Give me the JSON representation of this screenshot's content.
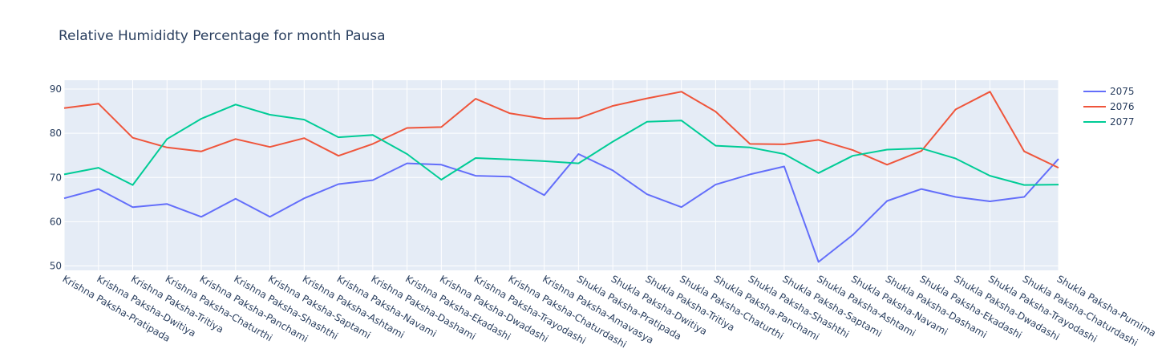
{
  "chart_data": {
    "type": "line",
    "title": "Relative Humididty Percentage for month Pausa",
    "xlabel": "",
    "ylabel": "",
    "ylim": [
      49,
      92
    ],
    "yticks": [
      50,
      60,
      70,
      80,
      90
    ],
    "grid": true,
    "legend_position": "top-right",
    "categories": [
      "Krishna Paksha-Pratipada",
      "Krishna Paksha-Dwitiya",
      "Krishna Paksha-Tritiya",
      "Krishna Paksha-Chaturthi",
      "Krishna Paksha-Panchami",
      "Krishna Paksha-Shashthi",
      "Krishna Paksha-Saptami",
      "Krishna Paksha-Ashtami",
      "Krishna Paksha-Navami",
      "Krishna Paksha-Dashami",
      "Krishna Paksha-Ekadashi",
      "Krishna Paksha-Dwadashi",
      "Krishna Paksha-Trayodashi",
      "Krishna Paksha-Chaturdashi",
      "Krishna Paksha-Amavasya",
      "Shukla Paksha-Pratipada",
      "Shukla Paksha-Dwitiya",
      "Shukla Paksha-Tritiya",
      "Shukla Paksha-Chaturthi",
      "Shukla Paksha-Panchami",
      "Shukla Paksha-Shashthi",
      "Shukla Paksha-Saptami",
      "Shukla Paksha-Ashtami",
      "Shukla Paksha-Navami",
      "Shukla Paksha-Dashami",
      "Shukla Paksha-Ekadashi",
      "Shukla Paksha-Dwadashi",
      "Shukla Paksha-Trayodashi",
      "Shukla Paksha-Chaturdashi",
      "Shukla Paksha-Purnima"
    ],
    "series": [
      {
        "name": "2075",
        "color": "#636efa",
        "values": [
          65.3,
          67.4,
          63.3,
          64.0,
          61.1,
          65.2,
          61.1,
          65.3,
          68.5,
          69.4,
          73.2,
          72.9,
          70.4,
          70.2,
          66.0,
          75.3,
          71.6,
          66.2,
          63.3,
          68.4,
          70.7,
          72.5,
          50.9,
          57.0,
          64.7,
          67.4,
          65.6,
          64.6,
          65.6,
          74.2
        ]
      },
      {
        "name": "2076",
        "color": "#ef553b",
        "values": [
          85.7,
          86.7,
          79.0,
          76.8,
          75.9,
          78.7,
          76.9,
          78.9,
          74.9,
          77.6,
          81.2,
          81.4,
          87.8,
          84.5,
          83.3,
          83.4,
          86.2,
          87.9,
          89.4,
          84.9,
          77.6,
          77.5,
          78.5,
          76.2,
          72.9,
          76.0,
          85.4,
          89.4,
          75.9,
          72.2
        ]
      },
      {
        "name": "2077",
        "color": "#00cc96",
        "values": [
          70.7,
          72.2,
          68.3,
          78.7,
          83.3,
          86.5,
          84.2,
          83.1,
          79.1,
          79.6,
          75.3,
          69.5,
          74.4,
          74.1,
          73.7,
          73.2,
          78.1,
          82.6,
          82.9,
          77.2,
          76.8,
          75.3,
          71.0,
          74.9,
          76.3,
          76.6,
          74.3,
          70.4,
          68.3,
          68.4
        ]
      }
    ]
  }
}
